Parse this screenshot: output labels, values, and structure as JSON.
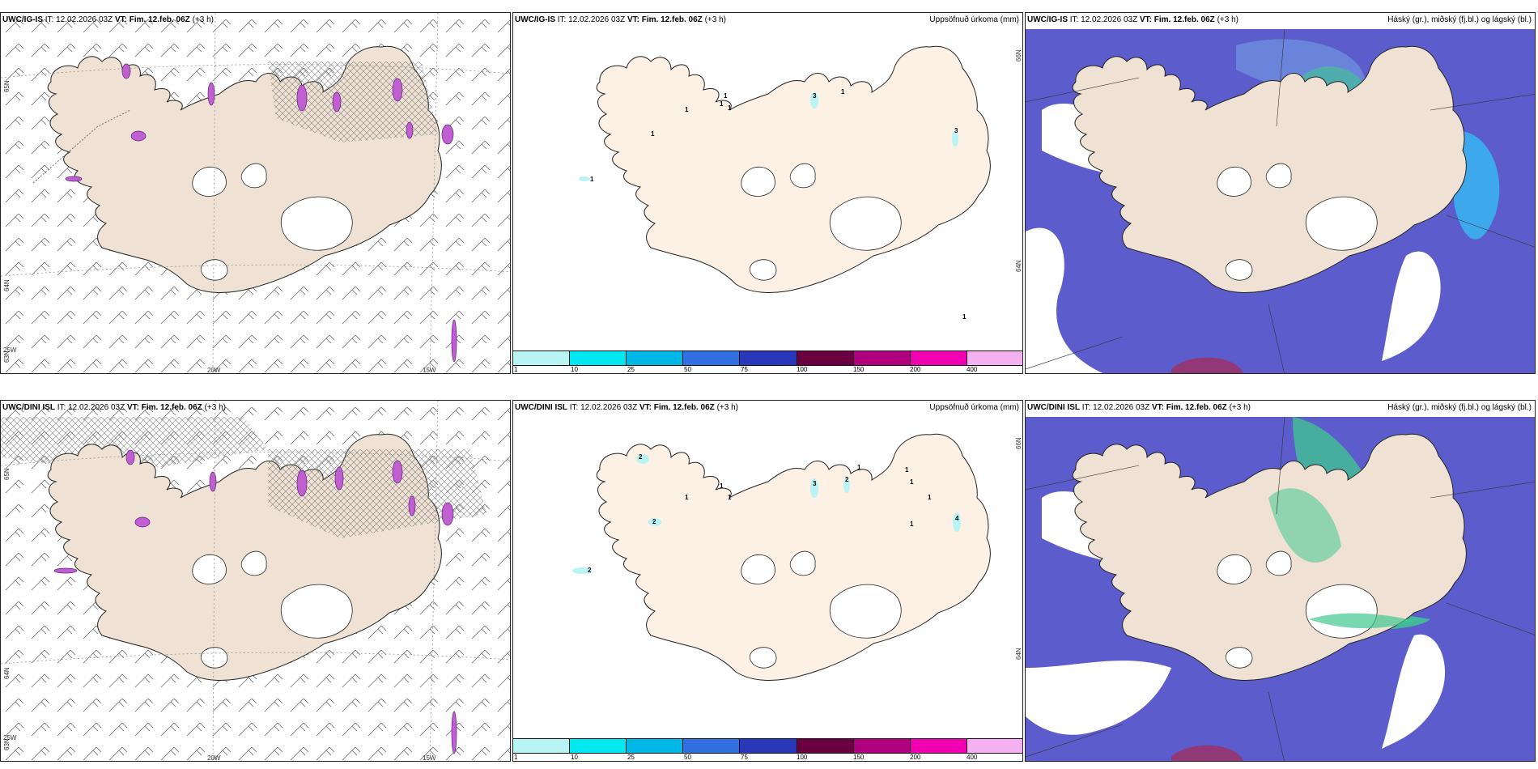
{
  "panels": [
    {
      "model": "UWC/IG-IS",
      "it_label": "IT:",
      "it_value": "12.02.2026 03Z",
      "vt_label": "VT: Fim. 12.feb. 06Z",
      "lead": "(+3 h)",
      "right_title": "",
      "lat_labels": [
        "65N",
        "64N",
        "63N"
      ],
      "lon_labels": [
        "25W",
        "20W",
        "15W"
      ]
    },
    {
      "model": "UWC/IG-IS",
      "it_label": "IT:",
      "it_value": "12.02.2026 03Z",
      "vt_label": "VT: Fim. 12.feb. 06Z",
      "lead": "(+3 h)",
      "right_title": "Uppsöfnuð úrkoma (mm)",
      "lat_labels": [
        "66N",
        "64N"
      ],
      "numbers": [
        "1",
        "1",
        "1",
        "1",
        "3",
        "1",
        "3",
        "1",
        "1",
        "1"
      ]
    },
    {
      "model": "UWC/IG-IS",
      "it_label": "IT:",
      "it_value": "12.02.2026 03Z",
      "vt_label": "VT: Fim. 12.feb. 06Z",
      "lead": "(+3 h)",
      "right_title": "Háský (gr.), miðský (fj.bl.) og lágský (bl.)"
    },
    {
      "model": "UWC/DINI ISL",
      "it_label": "IT:",
      "it_value": "12.02.2026 03Z",
      "vt_label": "VT: Fim. 12.feb. 06Z",
      "lead": "(+3 h)",
      "right_title": "",
      "lat_labels": [
        "65N",
        "64N",
        "63N"
      ],
      "lon_labels": [
        "25W",
        "20W",
        "15W"
      ]
    },
    {
      "model": "UWC/DINI ISL",
      "it_label": "IT:",
      "it_value": "12.02.2026 03Z",
      "vt_label": "VT: Fim. 12.feb. 06Z",
      "lead": "(+3 h)",
      "right_title": "Uppsöfnuð úrkoma (mm)",
      "lat_labels": [
        "66N",
        "64N"
      ],
      "numbers": [
        "2",
        "2",
        "2",
        "1",
        "1",
        "1",
        "3",
        "2",
        "1",
        "1",
        "1",
        "1",
        "4",
        "1"
      ]
    },
    {
      "model": "UWC/DINI ISL",
      "it_label": "IT:",
      "it_value": "12.02.2026 03Z",
      "vt_label": "VT: Fim. 12.feb. 06Z",
      "lead": "(+3 h)",
      "right_title": "Háský (gr.), miðský (fj.bl.) og lágský (bl.)"
    }
  ],
  "colorbar": {
    "labels": [
      "1",
      "10",
      "25",
      "50",
      "75",
      "100",
      "150",
      "200",
      "400"
    ],
    "colors": [
      "#b8f4f4",
      "#00e8f0",
      "#00b8e8",
      "#3070e0",
      "#2838b8",
      "#6a0040",
      "#b00080",
      "#f000b0",
      "#f4b0f0"
    ]
  },
  "colors": {
    "land": "#efe2d4",
    "land_precip": "#fdf0e4",
    "cloud_high": "#5c5ccc",
    "cloud_mid": "#3ab0f0",
    "cloud_green": "#40c890",
    "sea": "#ffffff"
  }
}
